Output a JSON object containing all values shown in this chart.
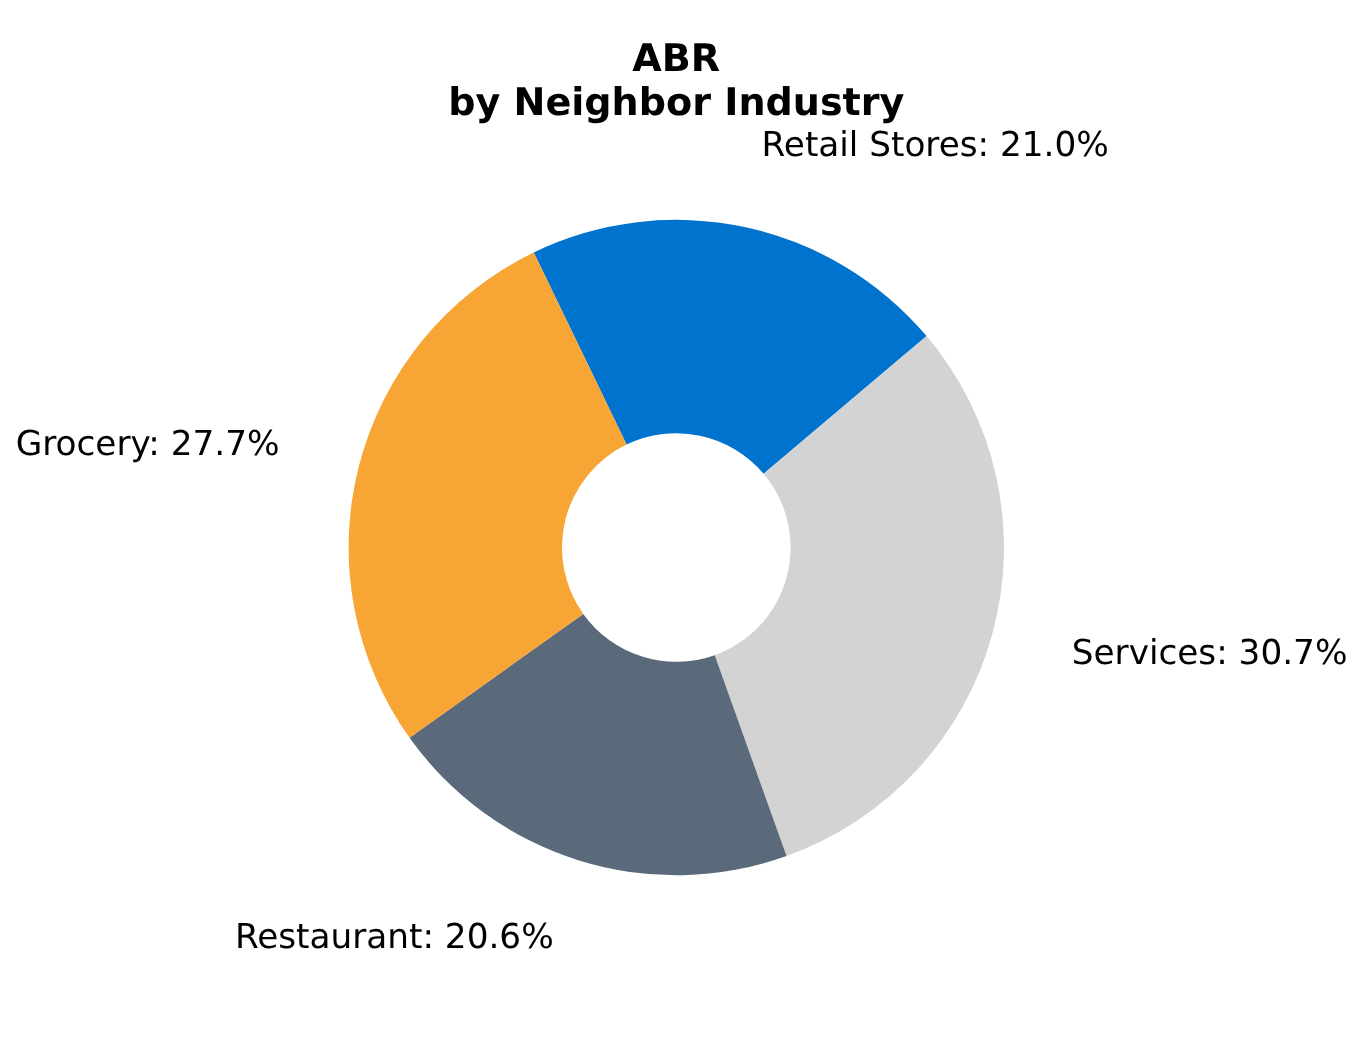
{
  "chart_data": {
    "type": "donut",
    "title": "ABR",
    "subtitle": "by Neighbor Industry",
    "categories": [
      "Retail Stores",
      "Services",
      "Restaurant",
      "Grocery"
    ],
    "values": [
      21.0,
      30.7,
      20.6,
      27.7
    ],
    "colors": [
      "#0073cf",
      "#d3d3d3",
      "#5b6a7a",
      "#f7a535"
    ],
    "value_labels": [
      "21.0%",
      "30.7%",
      "20.6%",
      "27.7%"
    ],
    "legend": false
  }
}
